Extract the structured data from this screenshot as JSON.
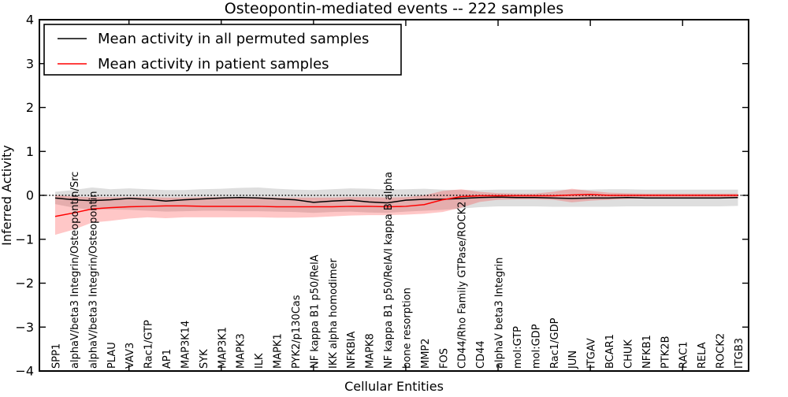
{
  "title": "Osteopontin-mediated events -- 222 samples",
  "axes": {
    "xlabel": "Cellular Entities",
    "ylabel": "Inferred Activity",
    "yticks": [
      -4,
      -3,
      -2,
      -1,
      0,
      1,
      2,
      3,
      4
    ],
    "ylim": [
      -4,
      4
    ]
  },
  "legend": {
    "entries": [
      {
        "label": "Mean activity in all permuted samples",
        "color": "#000000"
      },
      {
        "label": "Mean activity in patient samples",
        "color": "#ff0000"
      }
    ]
  },
  "colors": {
    "permuted_line": "#000000",
    "patient_line": "#ff0000",
    "permuted_band": "#999999",
    "patient_band": "#ff0000",
    "zero_line": "#000000",
    "frame": "#000000"
  },
  "chart_data": {
    "type": "line",
    "title": "Osteopontin-mediated events -- 222 samples",
    "xlabel": "Cellular Entities",
    "ylabel": "Inferred Activity",
    "ylim": [
      -4,
      4
    ],
    "yticks": [
      -4,
      -3,
      -2,
      -1,
      0,
      1,
      2,
      3,
      4
    ],
    "xticks_every": 5,
    "grid": false,
    "legend_position": "upper left",
    "zero_reference_line": {
      "y": 0,
      "style": "dotted"
    },
    "categories": [
      "SPP1",
      "alphaV/beta3 Integrin/Osteopontin/Src",
      "alphaV/beta3 Integrin/Osteopontin",
      "PLAU",
      "VAV3",
      "Rac1/GTP",
      "AP1",
      "MAP3K14",
      "SYK",
      "MAP3K1",
      "MAPK3",
      "ILK",
      "MAPK1",
      "PYK2/p130Cas",
      "NF kappa B1 p50/RelA",
      "IKK alpha homodimer",
      "NFKBIA",
      "MAPK8",
      "NF kappa B1 p50/RelA/I kappa B alpha",
      "bone resorption",
      "MMP2",
      "FOS",
      "CD44/Rho Family GTPase/ROCK2",
      "CD44",
      "alphaV beta3 Integrin",
      "mol:GTP",
      "mol:GDP",
      "Rac1/GDP",
      "JUN",
      "ITGAV",
      "BCAR1",
      "CHUK",
      "NFKB1",
      "PTK2B",
      "RAC1",
      "RELA",
      "ROCK2",
      "ITGB3"
    ],
    "series": [
      {
        "id": "permuted",
        "name": "Mean activity in all permuted samples",
        "color": "#000000",
        "band_color": "#999999",
        "band_opacity": 0.32,
        "values": [
          -0.06,
          -0.1,
          -0.12,
          -0.1,
          -0.07,
          -0.09,
          -0.13,
          -0.1,
          -0.08,
          -0.06,
          -0.05,
          -0.06,
          -0.08,
          -0.1,
          -0.16,
          -0.13,
          -0.11,
          -0.15,
          -0.17,
          -0.11,
          -0.09,
          -0.09,
          -0.07,
          -0.05,
          -0.04,
          -0.05,
          -0.05,
          -0.06,
          -0.07,
          -0.06,
          -0.06,
          -0.05,
          -0.06,
          -0.06,
          -0.06,
          -0.06,
          -0.06,
          -0.05
        ],
        "band_upper": [
          0.08,
          0.12,
          0.18,
          0.14,
          0.16,
          0.14,
          0.12,
          0.12,
          0.14,
          0.15,
          0.17,
          0.18,
          0.15,
          0.13,
          0.12,
          0.14,
          0.16,
          0.15,
          0.13,
          0.14,
          0.15,
          0.13,
          0.12,
          0.12,
          0.13,
          0.13,
          0.13,
          0.13,
          0.13,
          0.13,
          0.14,
          0.14,
          0.13,
          0.13,
          0.13,
          0.13,
          0.13,
          0.13
        ],
        "band_lower": [
          -0.2,
          -0.28,
          -0.33,
          -0.32,
          -0.33,
          -0.35,
          -0.37,
          -0.36,
          -0.35,
          -0.35,
          -0.36,
          -0.36,
          -0.37,
          -0.38,
          -0.4,
          -0.38,
          -0.37,
          -0.39,
          -0.4,
          -0.37,
          -0.35,
          -0.33,
          -0.3,
          -0.27,
          -0.25,
          -0.25,
          -0.25,
          -0.26,
          -0.26,
          -0.26,
          -0.26,
          -0.25,
          -0.25,
          -0.25,
          -0.25,
          -0.25,
          -0.25,
          -0.24
        ]
      },
      {
        "id": "patient",
        "name": "Mean activity in patient samples",
        "color": "#ff0000",
        "band_color": "#ff0000",
        "band_opacity": 0.22,
        "values": [
          -0.48,
          -0.4,
          -0.31,
          -0.28,
          -0.26,
          -0.25,
          -0.24,
          -0.24,
          -0.25,
          -0.25,
          -0.25,
          -0.25,
          -0.26,
          -0.26,
          -0.26,
          -0.26,
          -0.25,
          -0.25,
          -0.26,
          -0.25,
          -0.21,
          -0.1,
          -0.03,
          -0.01,
          -0.01,
          -0.01,
          -0.01,
          -0.01,
          0.01,
          0.02,
          0.0,
          0.0,
          0.0,
          0.0,
          0.0,
          0.0,
          0.0,
          0.0
        ],
        "band_upper": [
          0.0,
          -0.03,
          -0.04,
          -0.04,
          -0.04,
          -0.04,
          -0.05,
          -0.05,
          -0.04,
          -0.04,
          -0.04,
          -0.04,
          -0.05,
          -0.05,
          -0.05,
          -0.05,
          -0.04,
          -0.04,
          -0.05,
          -0.04,
          0.0,
          0.1,
          0.14,
          0.08,
          0.05,
          0.04,
          0.04,
          0.08,
          0.15,
          0.1,
          0.06,
          0.05,
          0.04,
          0.04,
          0.04,
          0.04,
          0.04,
          0.04
        ],
        "band_lower": [
          -0.9,
          -0.78,
          -0.62,
          -0.58,
          -0.53,
          -0.5,
          -0.52,
          -0.5,
          -0.5,
          -0.5,
          -0.5,
          -0.5,
          -0.51,
          -0.51,
          -0.5,
          -0.48,
          -0.46,
          -0.45,
          -0.45,
          -0.44,
          -0.42,
          -0.38,
          -0.28,
          -0.15,
          -0.1,
          -0.09,
          -0.09,
          -0.1,
          -0.16,
          -0.12,
          -0.1,
          -0.08,
          -0.07,
          -0.07,
          -0.07,
          -0.07,
          -0.07,
          -0.07
        ]
      }
    ]
  }
}
